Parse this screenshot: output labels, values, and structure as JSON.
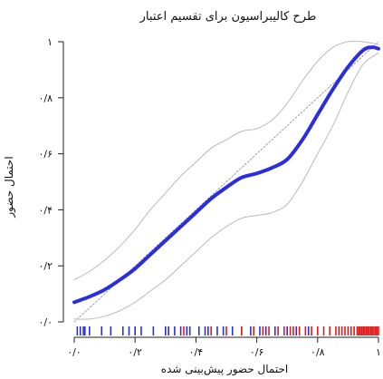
{
  "chart_data": {
    "type": "line",
    "title": "طرح کالیبراسیون برای تقسیم اعتبار",
    "xlabel": "احتمال حضور پیش‌بینی شده",
    "ylabel": "احتمال حضور",
    "xlim": [
      0,
      1
    ],
    "ylim": [
      0,
      1
    ],
    "x_ticks": [
      0,
      0.2,
      0.4,
      0.6,
      0.8,
      1
    ],
    "x_tick_labels": [
      "۰/۰",
      "۰/۲",
      "۰/۴",
      "۰/۶",
      "۰/۸",
      "۱"
    ],
    "y_ticks": [
      0,
      0.2,
      0.4,
      0.6,
      0.8,
      1
    ],
    "y_tick_labels": [
      "۰/۰",
      "۰/۲",
      "۰/۴",
      "۰/۶",
      "۰/۸",
      "۱"
    ],
    "grid": false,
    "series": [
      {
        "role": "calibration",
        "color": "#2a2ee0",
        "x": [
          0.0,
          0.05,
          0.1,
          0.15,
          0.2,
          0.25,
          0.3,
          0.35,
          0.4,
          0.45,
          0.5,
          0.55,
          0.6,
          0.65,
          0.7,
          0.75,
          0.8,
          0.85,
          0.9,
          0.95,
          0.98,
          1.0
        ],
        "y": [
          0.07,
          0.09,
          0.115,
          0.15,
          0.19,
          0.24,
          0.29,
          0.34,
          0.39,
          0.44,
          0.48,
          0.515,
          0.53,
          0.55,
          0.58,
          0.65,
          0.74,
          0.83,
          0.91,
          0.97,
          0.98,
          0.975
        ]
      },
      {
        "role": "upper-band",
        "color": "#b8b8c4",
        "x": [
          0.0,
          0.05,
          0.1,
          0.15,
          0.2,
          0.25,
          0.3,
          0.35,
          0.4,
          0.45,
          0.5,
          0.55,
          0.6,
          0.65,
          0.7,
          0.75,
          0.8,
          0.85,
          0.9,
          0.95,
          1.0
        ],
        "y": [
          0.15,
          0.18,
          0.22,
          0.27,
          0.33,
          0.4,
          0.46,
          0.52,
          0.57,
          0.62,
          0.65,
          0.68,
          0.69,
          0.72,
          0.78,
          0.86,
          0.93,
          0.98,
          1.0,
          1.0,
          0.99
        ]
      },
      {
        "role": "lower-band",
        "color": "#b8b8c4",
        "x": [
          0.0,
          0.05,
          0.1,
          0.15,
          0.2,
          0.25,
          0.3,
          0.35,
          0.4,
          0.45,
          0.5,
          0.55,
          0.6,
          0.65,
          0.7,
          0.75,
          0.8,
          0.85,
          0.9,
          0.95,
          1.0
        ],
        "y": [
          0.01,
          0.01,
          0.02,
          0.04,
          0.07,
          0.11,
          0.15,
          0.2,
          0.25,
          0.3,
          0.34,
          0.37,
          0.38,
          0.39,
          0.42,
          0.5,
          0.6,
          0.7,
          0.82,
          0.92,
          0.96
        ]
      },
      {
        "role": "reference-diagonal",
        "color": "#888888",
        "x": [
          0,
          1
        ],
        "y": [
          0,
          1
        ]
      }
    ],
    "rug": {
      "blue": [
        0.01,
        0.02,
        0.03,
        0.035,
        0.05,
        0.09,
        0.12,
        0.16,
        0.18,
        0.2,
        0.22,
        0.26,
        0.3,
        0.31,
        0.33,
        0.35,
        0.37,
        0.38,
        0.41,
        0.43,
        0.44,
        0.47,
        0.49,
        0.52,
        0.55,
        0.58,
        0.61,
        0.63,
        0.66,
        0.7,
        0.73,
        0.77
      ],
      "red": [
        0.36,
        0.45,
        0.5,
        0.55,
        0.59,
        0.62,
        0.64,
        0.67,
        0.69,
        0.71,
        0.72,
        0.74,
        0.76,
        0.78,
        0.8,
        0.82,
        0.84,
        0.86,
        0.87,
        0.88,
        0.89,
        0.9,
        0.91,
        0.92,
        0.93,
        0.935,
        0.94,
        0.945,
        0.95,
        0.955,
        0.96,
        0.965,
        0.97,
        0.975,
        0.98,
        0.985,
        0.99,
        0.995,
        1.0
      ]
    }
  }
}
